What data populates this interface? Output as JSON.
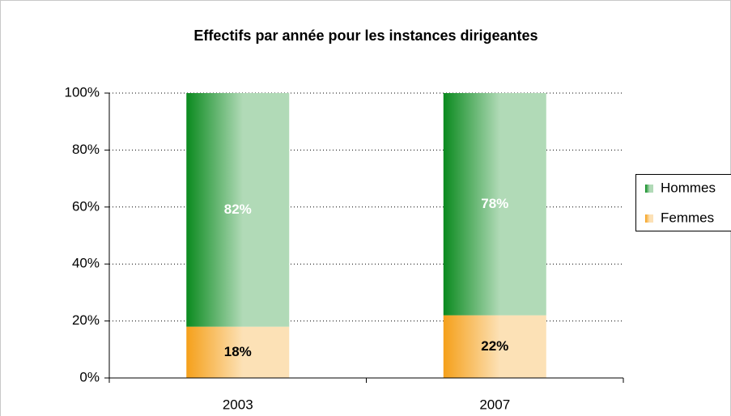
{
  "chart_data": {
    "type": "stacked_bar",
    "title": "Effectifs par année pour les instances dirigeantes",
    "categories": [
      "2003",
      "2007"
    ],
    "series": [
      {
        "name": "Femmes",
        "color": "#f5a01a",
        "values": [
          18,
          22
        ],
        "value_labels": [
          "18%",
          "22%"
        ]
      },
      {
        "name": "Hommes",
        "color": "#0a8a1e",
        "values": [
          82,
          78
        ],
        "value_labels": [
          "82%",
          "78%"
        ]
      }
    ],
    "ylim": [
      0,
      100
    ],
    "yticks": [
      {
        "value": 0,
        "label": "0%"
      },
      {
        "value": 20,
        "label": "20%"
      },
      {
        "value": 40,
        "label": "40%"
      },
      {
        "value": 60,
        "label": "60%"
      },
      {
        "value": 80,
        "label": "80%"
      },
      {
        "value": 100,
        "label": "100%"
      }
    ],
    "grid": true,
    "legend": "right"
  }
}
